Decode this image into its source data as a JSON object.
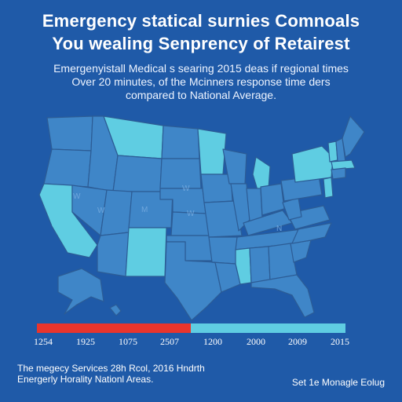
{
  "title": {
    "line1": "Emergency statical surnies Comnoals",
    "line2": "You wealing Senprency of Retairest"
  },
  "subtitle": {
    "line1": "Emergenyistall Medical s searing 2015 deas if regional times",
    "line2": "Over 20 minutes, of the Mcinners response time ders",
    "line3": "compared to National Average."
  },
  "map": {
    "state_labels": [
      "W",
      "W",
      "M",
      "W",
      "W",
      "N"
    ],
    "colors": {
      "background": "#1f5aa8",
      "state_dark": "#3f86c8",
      "state_light": "#5fcde2",
      "state_border": "#2c5c95",
      "bar_red": "#e8352d",
      "bar_cyan": "#5fcde2"
    }
  },
  "scale": {
    "ticks": [
      "1254",
      "1925",
      "1075",
      "2507",
      "1200",
      "2000",
      "2009",
      "2015"
    ]
  },
  "footer": {
    "line1": "The megecy Services 28h Rcol, 2016 Hndrth",
    "line2": "Energerly Horality Nationl Areas.",
    "right": "Set 1e Monagle Eolug"
  }
}
